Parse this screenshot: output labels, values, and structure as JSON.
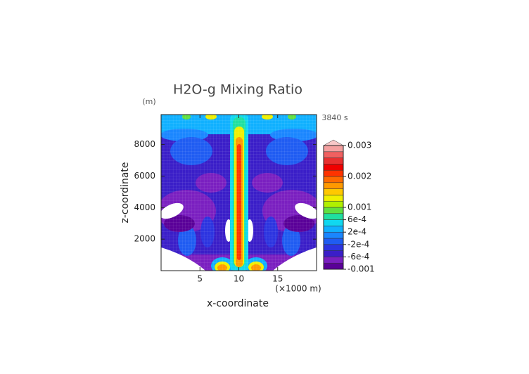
{
  "chart_data": {
    "type": "contour",
    "title": "H2O-g Mixing Ratio",
    "y_unit": "(m)",
    "time_label": "3840 s",
    "x_label": "x-coordinate",
    "y_label": "z-coordinate",
    "x_unit": "(×1000 m)",
    "xlim": [
      0,
      20
    ],
    "xticks": [
      5,
      10,
      15
    ],
    "ylim": [
      0,
      9900
    ],
    "yticks": [
      2000,
      4000,
      6000,
      8000
    ],
    "colorbar": {
      "clim": [
        -0.001,
        0.003
      ],
      "colors": [
        "#5a0098",
        "#7a1fc0",
        "#3a1ec8",
        "#2c34e0",
        "#1f5cf2",
        "#1a86ff",
        "#10b0ff",
        "#10d8f0",
        "#20e0a0",
        "#60e040",
        "#b0f000",
        "#f0f000",
        "#ffc800",
        "#ff9900",
        "#ff6a00",
        "#ff3300",
        "#f00000",
        "#e83030",
        "#f06060",
        "#f4a0a0"
      ],
      "extend_color": "#f8c8c8",
      "ticks": [
        -0.001,
        {
          "value": -0.0006,
          "label": "-6e-4"
        },
        {
          "value": -0.0002,
          "label": "-2e-4"
        },
        {
          "value": 0.0002,
          "label": "2e-4"
        },
        {
          "value": 0.0006,
          "label": "6e-4"
        },
        0.001,
        0.002,
        0.003
      ]
    }
  }
}
